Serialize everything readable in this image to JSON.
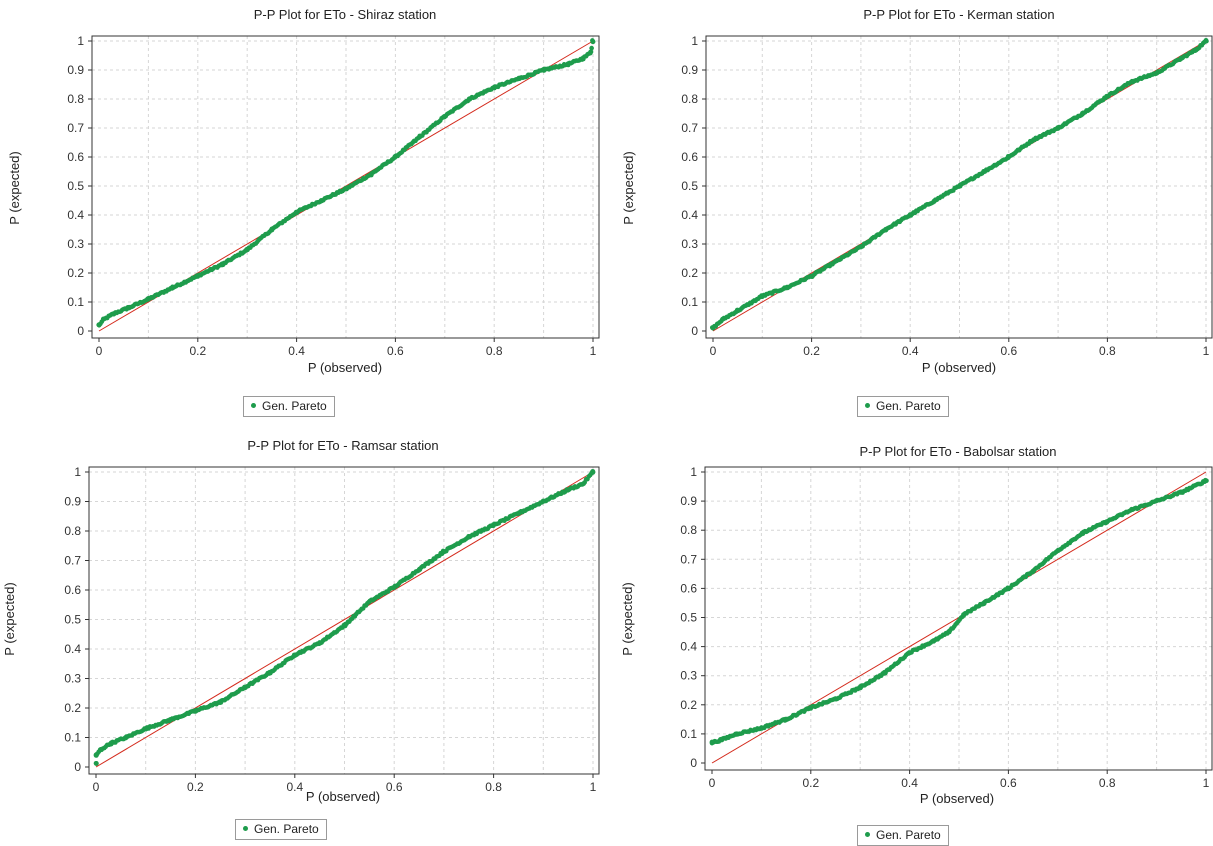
{
  "colors": {
    "points": "#1e9c4c",
    "reference_line": "#d42a1c",
    "grid": "#d6d6d6",
    "frame": "#333333"
  },
  "chart_data": [
    {
      "type": "scatter",
      "title": "P-P Plot for ETo - Shiraz station",
      "xlabel": "P (observed)",
      "ylabel": "P (expected)",
      "xlim": [
        0,
        1
      ],
      "ylim": [
        0,
        1
      ],
      "xticks": [
        "0",
        "0.2",
        "0.4",
        "0.6",
        "0.8",
        "1"
      ],
      "yticks": [
        "0",
        "0.1",
        "0.2",
        "0.3",
        "0.4",
        "0.5",
        "0.6",
        "0.7",
        "0.8",
        "0.9",
        "1"
      ],
      "grid": true,
      "legend": [
        "Gen. Pareto"
      ],
      "legend_position": "bottom",
      "reference_line": [
        [
          0,
          0
        ],
        [
          1,
          1
        ]
      ],
      "series": [
        {
          "name": "Gen. Pareto",
          "curve": [
            [
              0,
              0.02
            ],
            [
              0.01,
              0.04
            ],
            [
              0.03,
              0.06
            ],
            [
              0.06,
              0.08
            ],
            [
              0.1,
              0.11
            ],
            [
              0.15,
              0.15
            ],
            [
              0.2,
              0.19
            ],
            [
              0.25,
              0.23
            ],
            [
              0.3,
              0.28
            ],
            [
              0.35,
              0.35
            ],
            [
              0.4,
              0.41
            ],
            [
              0.45,
              0.45
            ],
            [
              0.5,
              0.49
            ],
            [
              0.55,
              0.54
            ],
            [
              0.6,
              0.6
            ],
            [
              0.65,
              0.67
            ],
            [
              0.7,
              0.74
            ],
            [
              0.75,
              0.8
            ],
            [
              0.8,
              0.84
            ],
            [
              0.85,
              0.87
            ],
            [
              0.9,
              0.9
            ],
            [
              0.95,
              0.92
            ],
            [
              0.98,
              0.94
            ],
            [
              0.995,
              0.96
            ],
            [
              1,
              1
            ]
          ]
        }
      ]
    },
    {
      "type": "scatter",
      "title": "P-P Plot for ETo - Kerman station",
      "xlabel": "P (observed)",
      "ylabel": "P (expected)",
      "xlim": [
        0,
        1
      ],
      "ylim": [
        0,
        1
      ],
      "xticks": [
        "0",
        "0.2",
        "0.4",
        "0.6",
        "0.8",
        "1"
      ],
      "yticks": [
        "0",
        "0.1",
        "0.2",
        "0.3",
        "0.4",
        "0.5",
        "0.6",
        "0.7",
        "0.8",
        "0.9",
        "1"
      ],
      "grid": true,
      "legend": [
        "Gen. Pareto"
      ],
      "legend_position": "bottom",
      "reference_line": [
        [
          0,
          0
        ],
        [
          1,
          1
        ]
      ],
      "series": [
        {
          "name": "Gen. Pareto",
          "curve": [
            [
              0,
              0.01
            ],
            [
              0.02,
              0.04
            ],
            [
              0.05,
              0.07
            ],
            [
              0.1,
              0.12
            ],
            [
              0.15,
              0.15
            ],
            [
              0.2,
              0.19
            ],
            [
              0.25,
              0.24
            ],
            [
              0.3,
              0.29
            ],
            [
              0.35,
              0.35
            ],
            [
              0.4,
              0.4
            ],
            [
              0.45,
              0.45
            ],
            [
              0.5,
              0.5
            ],
            [
              0.55,
              0.55
            ],
            [
              0.6,
              0.6
            ],
            [
              0.65,
              0.66
            ],
            [
              0.7,
              0.7
            ],
            [
              0.75,
              0.75
            ],
            [
              0.8,
              0.81
            ],
            [
              0.85,
              0.86
            ],
            [
              0.9,
              0.89
            ],
            [
              0.95,
              0.94
            ],
            [
              0.98,
              0.97
            ],
            [
              1,
              1
            ]
          ]
        }
      ]
    },
    {
      "type": "scatter",
      "title": "P-P Plot for ETo - Ramsar station",
      "xlabel": "P (observed)",
      "ylabel": "P (expected)",
      "xlim": [
        0,
        1
      ],
      "ylim": [
        0,
        1
      ],
      "xticks": [
        "0",
        "0.2",
        "0.4",
        "0.6",
        "0.8",
        "1"
      ],
      "yticks": [
        "0",
        "0.1",
        "0.2",
        "0.3",
        "0.4",
        "0.5",
        "0.6",
        "0.7",
        "0.8",
        "0.9",
        "1"
      ],
      "grid": true,
      "legend": [
        "Gen. Pareto"
      ],
      "legend_position": "bottom",
      "reference_line": [
        [
          0,
          0
        ],
        [
          1,
          1
        ]
      ],
      "series": [
        {
          "name": "Gen. Pareto",
          "curve": [
            [
              0,
              0.01
            ],
            [
              0,
              0.04
            ],
            [
              0.01,
              0.06
            ],
            [
              0.03,
              0.08
            ],
            [
              0.06,
              0.1
            ],
            [
              0.1,
              0.13
            ],
            [
              0.15,
              0.16
            ],
            [
              0.2,
              0.19
            ],
            [
              0.25,
              0.22
            ],
            [
              0.3,
              0.27
            ],
            [
              0.35,
              0.32
            ],
            [
              0.4,
              0.38
            ],
            [
              0.45,
              0.42
            ],
            [
              0.5,
              0.48
            ],
            [
              0.55,
              0.56
            ],
            [
              0.6,
              0.61
            ],
            [
              0.65,
              0.67
            ],
            [
              0.7,
              0.73
            ],
            [
              0.75,
              0.78
            ],
            [
              0.8,
              0.82
            ],
            [
              0.85,
              0.86
            ],
            [
              0.9,
              0.9
            ],
            [
              0.95,
              0.94
            ],
            [
              0.98,
              0.96
            ],
            [
              1,
              1
            ]
          ]
        }
      ]
    },
    {
      "type": "scatter",
      "title": "P-P Plot for ETo - Babolsar station",
      "xlabel": "P (observed)",
      "ylabel": "P (expected)",
      "xlim": [
        0,
        1
      ],
      "ylim": [
        0,
        1
      ],
      "xticks": [
        "0",
        "0.2",
        "0.4",
        "0.6",
        "0.8",
        "1"
      ],
      "yticks": [
        "0",
        "0.1",
        "0.2",
        "0.3",
        "0.4",
        "0.5",
        "0.6",
        "0.7",
        "0.8",
        "0.9",
        "1"
      ],
      "grid": true,
      "legend": [
        "Gen. Pareto"
      ],
      "legend_position": "bottom",
      "reference_line": [
        [
          0,
          0
        ],
        [
          1,
          1
        ]
      ],
      "series": [
        {
          "name": "Gen. Pareto",
          "curve": [
            [
              0,
              0.07
            ],
            [
              0.02,
              0.08
            ],
            [
              0.05,
              0.1
            ],
            [
              0.1,
              0.12
            ],
            [
              0.15,
              0.15
            ],
            [
              0.2,
              0.19
            ],
            [
              0.25,
              0.22
            ],
            [
              0.3,
              0.26
            ],
            [
              0.35,
              0.31
            ],
            [
              0.4,
              0.38
            ],
            [
              0.45,
              0.42
            ],
            [
              0.48,
              0.45
            ],
            [
              0.51,
              0.51
            ],
            [
              0.55,
              0.55
            ],
            [
              0.6,
              0.6
            ],
            [
              0.65,
              0.66
            ],
            [
              0.7,
              0.73
            ],
            [
              0.75,
              0.79
            ],
            [
              0.8,
              0.83
            ],
            [
              0.85,
              0.87
            ],
            [
              0.9,
              0.9
            ],
            [
              0.95,
              0.93
            ],
            [
              1,
              0.97
            ]
          ]
        }
      ]
    }
  ]
}
